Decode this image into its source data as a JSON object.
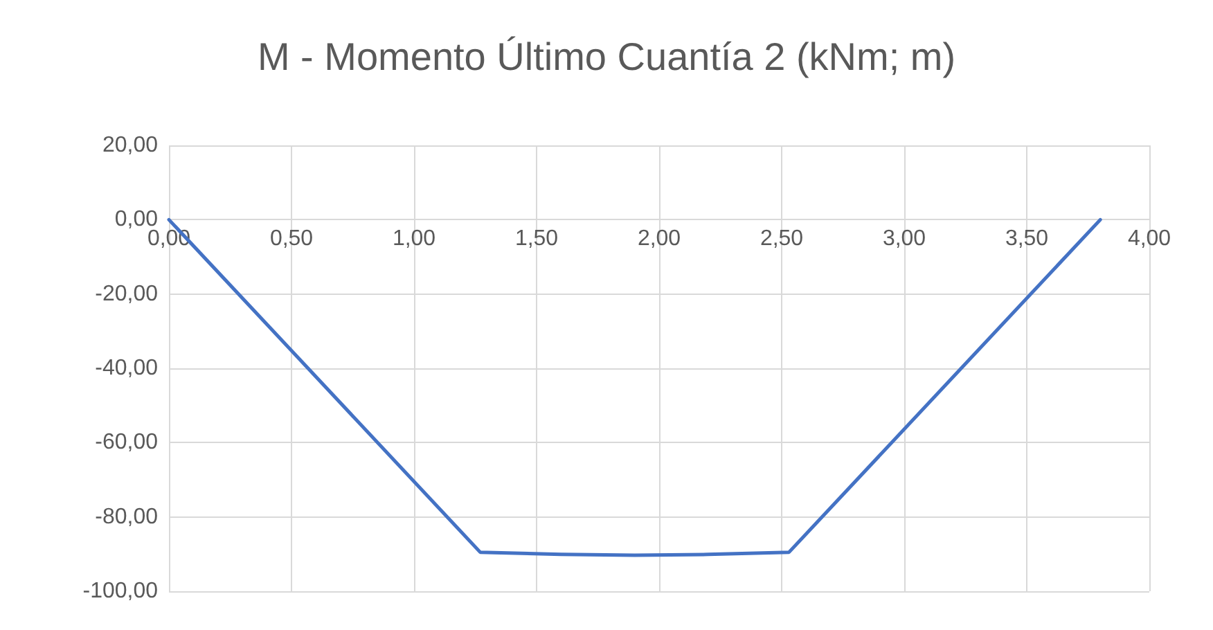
{
  "chart_data": {
    "type": "line",
    "title": "M - Momento Último Cuantía 2 (kNm; m)",
    "x": [
      0,
      1.27,
      1.6,
      1.9,
      2.2,
      2.53,
      3.8
    ],
    "series": [
      {
        "color": "#4472c4",
        "values": [
          0,
          -89.5,
          -90.1,
          -90.3,
          -90.1,
          -89.5,
          0
        ]
      }
    ],
    "xlim": [
      0,
      4
    ],
    "xticks": [
      {
        "value": 0,
        "label": "0,00"
      },
      {
        "value": 0.5,
        "label": "0,50"
      },
      {
        "value": 1,
        "label": "1,00"
      },
      {
        "value": 1.5,
        "label": "1,50"
      },
      {
        "value": 2,
        "label": "2,00"
      },
      {
        "value": 2.5,
        "label": "2,50"
      },
      {
        "value": 3,
        "label": "3,00"
      },
      {
        "value": 3.5,
        "label": "3,50"
      },
      {
        "value": 4,
        "label": "4,00"
      }
    ],
    "ylim": [
      -100,
      20
    ],
    "yticks": [
      {
        "value": -100,
        "label": "-100,00"
      },
      {
        "value": -80,
        "label": "-80,00"
      },
      {
        "value": -60,
        "label": "-60,00"
      },
      {
        "value": -40,
        "label": "-40,00"
      },
      {
        "value": -20,
        "label": "-20,00"
      },
      {
        "value": 0,
        "label": "0,00"
      },
      {
        "value": 20,
        "label": "20,00"
      }
    ],
    "grid": true,
    "marker": "none",
    "line_style": "solid"
  }
}
